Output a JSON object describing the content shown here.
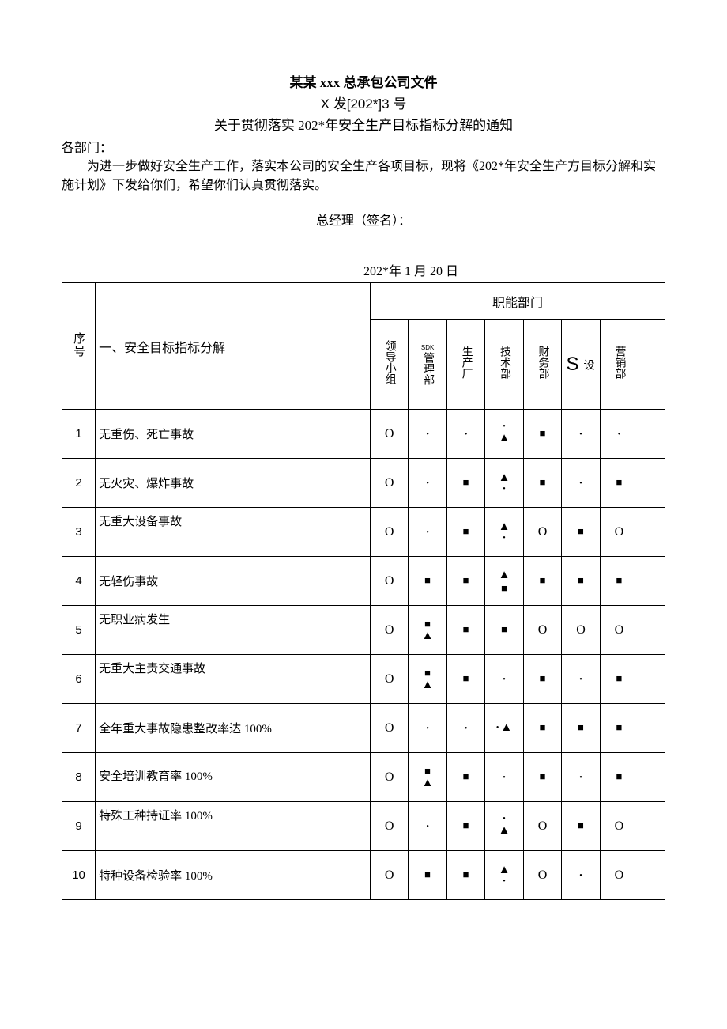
{
  "header": {
    "title_main": "某某 xxx 总承包公司文件",
    "title_sub": "X 发[202*]3 号",
    "title_notice": "关于贯彻落实 202*年安全生产目标指标分解的通知",
    "addressee": "各部门：",
    "body": "为进一步做好安全生产工作，落实本公司的安全生产各项目标，现将《202*年安全生产方目标分解和实施计划》下发给你们，希望你们认真贯彻落实。",
    "signature": "总经理（签名）：",
    "date": "202*年 1 月 20 日"
  },
  "table": {
    "col_seq_label": "序号",
    "col_desc_label": "一、安全目标指标分解",
    "dept_group_label": "职能部门",
    "depts": [
      {
        "label": "领导小组",
        "type": "cn"
      },
      {
        "label_en": "SDK",
        "label_cn": "管理部",
        "type": "mixed"
      },
      {
        "label": "生产厂",
        "type": "cn"
      },
      {
        "label": "技术部",
        "type": "cn"
      },
      {
        "label": "财务部",
        "type": "cn"
      },
      {
        "label_she": "设",
        "label_s": "S",
        "type": "she"
      },
      {
        "label": "营销部",
        "type": "cn"
      }
    ],
    "rows": [
      {
        "seq": "1",
        "desc": "无重伤、死亡事故",
        "desc_align": "mid",
        "cells": [
          "O",
          "dot",
          "dot",
          "dot_tri",
          "sq",
          "dot",
          "dot"
        ]
      },
      {
        "seq": "2",
        "desc": "无火灾、爆炸事故",
        "desc_align": "mid",
        "cells": [
          "O",
          "dot",
          "sq",
          "tri_dot",
          "sq",
          "dot",
          "sq"
        ]
      },
      {
        "seq": "3",
        "desc": "无重大设备事故",
        "desc_align": "top",
        "cells": [
          "O",
          "dot",
          "sq",
          "tri_dot",
          "O",
          "sq",
          "O"
        ]
      },
      {
        "seq": "4",
        "desc": "无轻伤事故",
        "desc_align": "mid",
        "cells": [
          "O",
          "sq",
          "sq",
          "tri_sq",
          "sq",
          "sq",
          "sq"
        ]
      },
      {
        "seq": "5",
        "desc": "无职业病发生",
        "desc_align": "top",
        "cells": [
          "O",
          "sq_tri",
          "sq",
          "sq",
          "O",
          "O",
          "O"
        ]
      },
      {
        "seq": "6",
        "desc": "无重大主责交通事故",
        "desc_align": "top",
        "cells": [
          "O",
          "sq_tri",
          "sq",
          "dot",
          "sq",
          "dot",
          "sq"
        ]
      },
      {
        "seq": "7",
        "desc": "全年重大事故隐患整改率达 100%",
        "desc_align": "mid",
        "cells": [
          "O",
          "dot",
          "dot",
          "dot_tri_h",
          "sq",
          "sq",
          "sq"
        ]
      },
      {
        "seq": "8",
        "desc": "安全培训教育率 100%",
        "desc_align": "top_pad",
        "cells": [
          "O",
          "sq_tri",
          "sq",
          "dot",
          "sq",
          "dot",
          "sq"
        ]
      },
      {
        "seq": "9",
        "desc": "特殊工种持证率 100%",
        "desc_align": "top",
        "cells": [
          "O",
          "dot",
          "sq",
          "dot_tri",
          "O",
          "sq",
          "O"
        ]
      },
      {
        "seq": "10",
        "desc": "特种设备检验率 100%",
        "desc_align": "mid",
        "cells": [
          "O",
          "sq",
          "sq",
          "tri_dot",
          "O",
          "dot",
          "O"
        ]
      }
    ]
  },
  "symbols": {
    "O": "O",
    "dot": "•",
    "sq": "■",
    "tri": "▲"
  }
}
